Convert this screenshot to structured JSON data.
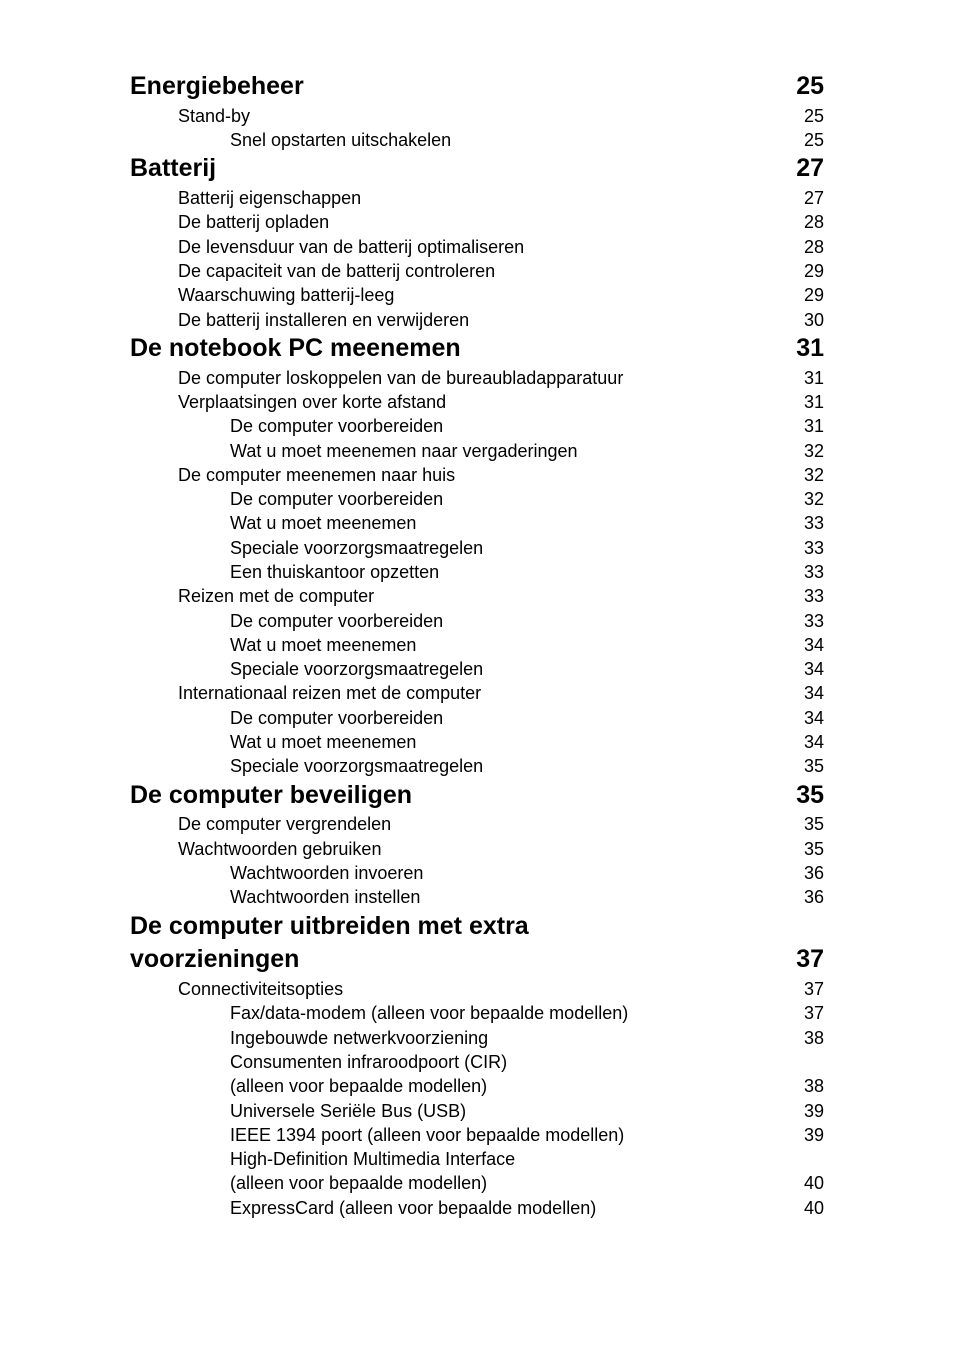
{
  "toc": [
    {
      "level": 1,
      "title": "Energiebeheer",
      "page": "25"
    },
    {
      "level": 2,
      "title": "Stand-by",
      "page": "25"
    },
    {
      "level": 3,
      "title": "Snel opstarten uitschakelen",
      "page": "25"
    },
    {
      "level": 1,
      "title": "Batterij",
      "page": "27"
    },
    {
      "level": 2,
      "title": "Batterij eigenschappen",
      "page": "27"
    },
    {
      "level": 2,
      "title": "De batterij opladen",
      "page": "28"
    },
    {
      "level": 2,
      "title": "De levensduur van de batterij optimaliseren",
      "page": "28"
    },
    {
      "level": 2,
      "title": "De capaciteit van de batterij controleren",
      "page": "29"
    },
    {
      "level": 2,
      "title": "Waarschuwing batterij-leeg",
      "page": "29"
    },
    {
      "level": 2,
      "title": "De batterij installeren en verwijderen",
      "page": "30"
    },
    {
      "level": 1,
      "title": "De notebook PC meenemen",
      "page": "31"
    },
    {
      "level": 2,
      "title": "De computer loskoppelen van de bureaubladapparatuur",
      "page": "31"
    },
    {
      "level": 2,
      "title": "Verplaatsingen over korte afstand",
      "page": "31"
    },
    {
      "level": 3,
      "title": "De computer voorbereiden",
      "page": "31"
    },
    {
      "level": 3,
      "title": "Wat u moet meenemen naar vergaderingen",
      "page": "32"
    },
    {
      "level": 2,
      "title": "De computer meenemen naar huis",
      "page": "32"
    },
    {
      "level": 3,
      "title": "De computer voorbereiden",
      "page": "32"
    },
    {
      "level": 3,
      "title": "Wat u moet meenemen",
      "page": "33"
    },
    {
      "level": 3,
      "title": "Speciale voorzorgsmaatregelen",
      "page": "33"
    },
    {
      "level": 3,
      "title": "Een thuiskantoor opzetten",
      "page": "33"
    },
    {
      "level": 2,
      "title": "Reizen met de computer",
      "page": "33"
    },
    {
      "level": 3,
      "title": "De computer voorbereiden",
      "page": "33"
    },
    {
      "level": 3,
      "title": "Wat u moet meenemen",
      "page": "34"
    },
    {
      "level": 3,
      "title": "Speciale voorzorgsmaatregelen",
      "page": "34"
    },
    {
      "level": 2,
      "title": "Internationaal reizen met de computer",
      "page": "34"
    },
    {
      "level": 3,
      "title": "De computer voorbereiden",
      "page": "34"
    },
    {
      "level": 3,
      "title": "Wat u moet meenemen",
      "page": "34"
    },
    {
      "level": 3,
      "title": "Speciale voorzorgsmaatregelen",
      "page": "35"
    },
    {
      "level": 1,
      "title": "De computer beveiligen",
      "page": "35"
    },
    {
      "level": 2,
      "title": "De computer vergrendelen",
      "page": "35"
    },
    {
      "level": 2,
      "title": "Wachtwoorden gebruiken",
      "page": "35"
    },
    {
      "level": 3,
      "title": "Wachtwoorden invoeren",
      "page": "36"
    },
    {
      "level": 3,
      "title": "Wachtwoorden instellen",
      "page": "36"
    },
    {
      "level": 1,
      "title": "De computer uitbreiden met extra voorzieningen",
      "page": "37",
      "split": true,
      "title_line1": "De computer uitbreiden met extra",
      "title_line2": "voorzieningen"
    },
    {
      "level": 2,
      "title": "Connectiviteitsopties",
      "page": "37"
    },
    {
      "level": 3,
      "title": "Fax/data-modem (alleen voor bepaalde modellen)",
      "page": "37"
    },
    {
      "level": 3,
      "title": "Ingebouwde netwerkvoorziening",
      "page": "38"
    },
    {
      "level": 3,
      "title": "Consumenten infraroodpoort (CIR)",
      "page": null,
      "continuation": true
    },
    {
      "level": 3,
      "title": "(alleen voor bepaalde modellen)",
      "page": "38"
    },
    {
      "level": 3,
      "title": "Universele Seriële Bus (USB)",
      "page": "39"
    },
    {
      "level": 3,
      "title": "IEEE 1394 poort (alleen voor bepaalde modellen)",
      "page": "39"
    },
    {
      "level": 3,
      "title": "High-Definition Multimedia Interface",
      "page": null,
      "continuation": true
    },
    {
      "level": 3,
      "title": "(alleen voor bepaalde modellen)",
      "page": "40"
    },
    {
      "level": 3,
      "title": "ExpressCard (alleen voor bepaalde modellen)",
      "page": "40"
    }
  ],
  "styles": {
    "h1_fontsize": 25,
    "h2_fontsize": 18,
    "h3_fontsize": 18,
    "text_color": "#000000",
    "background_color": "#ffffff",
    "h2_indent": 48,
    "h3_indent": 100
  }
}
